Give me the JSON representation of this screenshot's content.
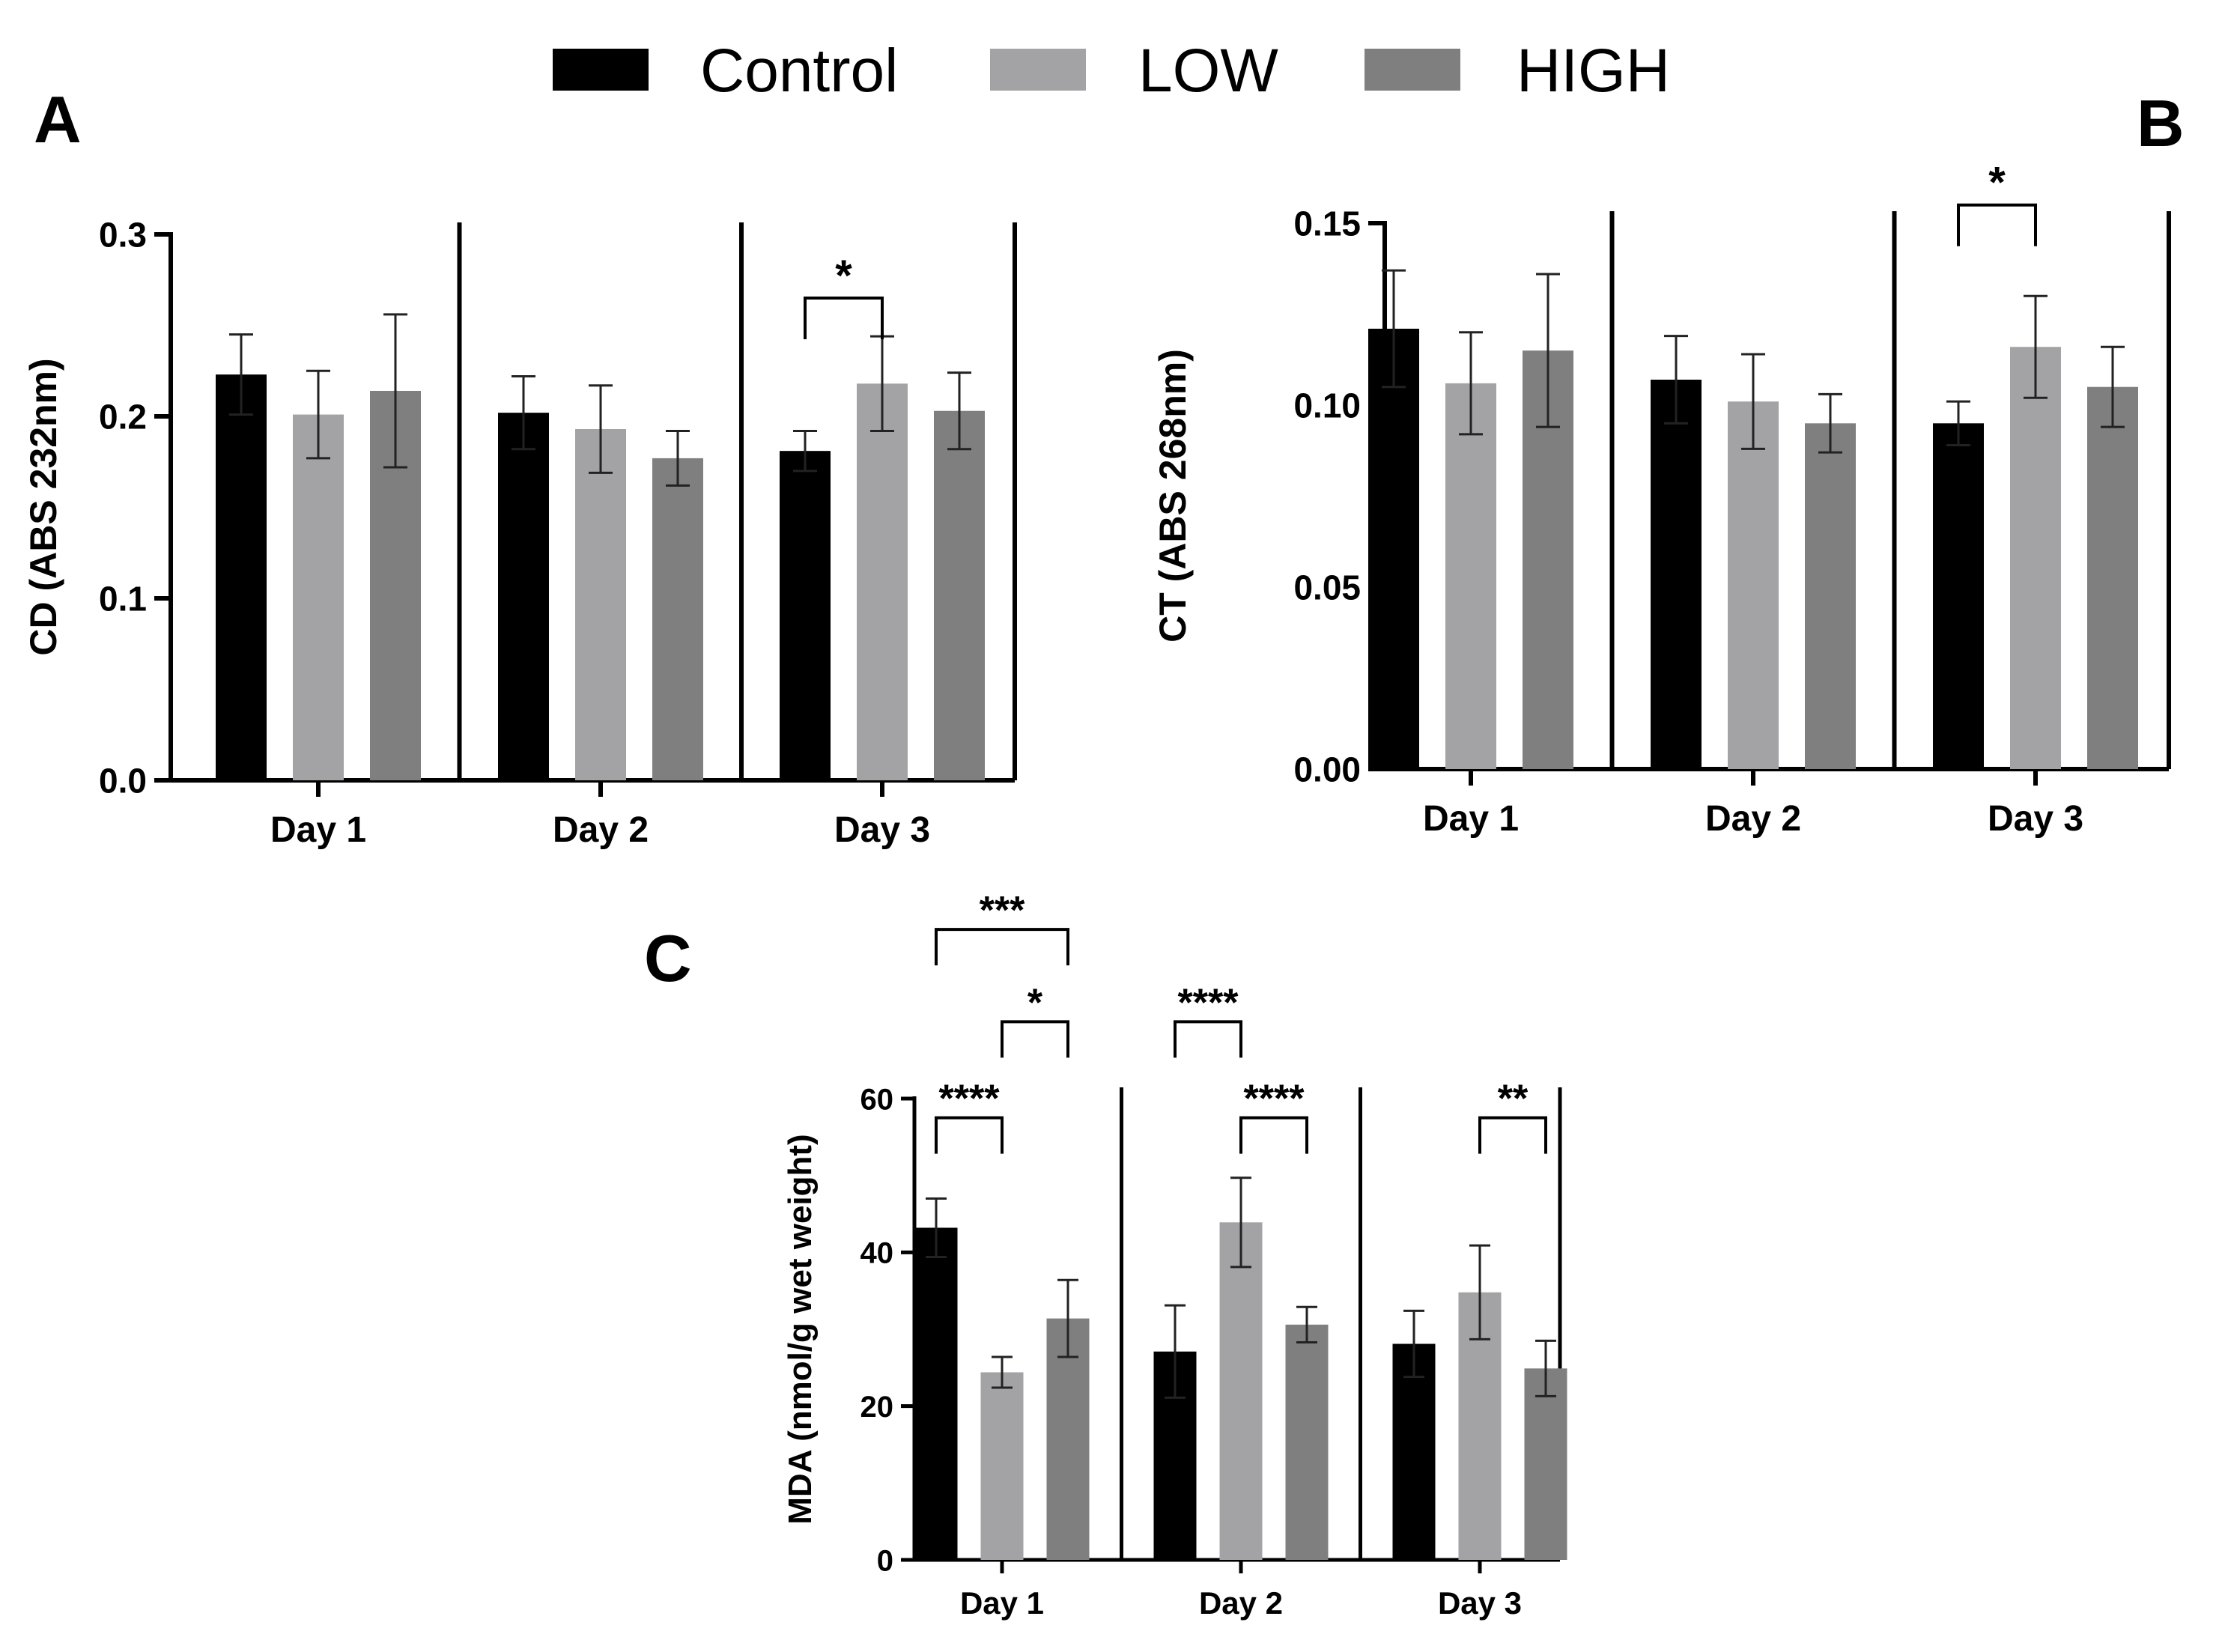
{
  "legend": [
    {
      "label": "Control",
      "color": "#000000"
    },
    {
      "label": "LOW",
      "color": "#a3a3a6"
    },
    {
      "label": "HIGH",
      "color": "#7f7f7f"
    }
  ],
  "chart_data": [
    {
      "type": "bar",
      "panel": "A",
      "title": "",
      "ylabel": "CD (ABS 232nm)",
      "xlabel": "",
      "categories": [
        "Day 1",
        "Day 2",
        "Day 3"
      ],
      "ylim": [
        0,
        0.3
      ],
      "yticks": [
        0,
        0.1,
        0.2,
        0.3
      ],
      "ytick_labels": [
        "0.0",
        "0.1",
        "0.2",
        "0.3"
      ],
      "series": [
        {
          "name": "Control",
          "values": [
            0.223,
            0.202,
            0.181
          ],
          "errors": [
            0.022,
            0.02,
            0.011
          ]
        },
        {
          "name": "LOW",
          "values": [
            0.201,
            0.193,
            0.218
          ],
          "errors": [
            0.024,
            0.024,
            0.026
          ]
        },
        {
          "name": "HIGH",
          "values": [
            0.214,
            0.177,
            0.203
          ],
          "errors": [
            0.042,
            0.015,
            0.021
          ]
        }
      ],
      "significance": [
        {
          "category": 2,
          "from": 0,
          "to": 1,
          "label": "*",
          "level": 0.265
        }
      ]
    },
    {
      "type": "bar",
      "panel": "B",
      "title": "",
      "ylabel": "CT (ABS 268nm)",
      "xlabel": "",
      "categories": [
        "Day 1",
        "Day 2",
        "Day 3"
      ],
      "ylim": [
        0,
        0.15
      ],
      "yticks": [
        0,
        0.05,
        0.1,
        0.15
      ],
      "ytick_labels": [
        "0.00",
        "0.05",
        "0.10",
        "0.15"
      ],
      "series": [
        {
          "name": "Control",
          "values": [
            0.121,
            0.107,
            0.095
          ],
          "errors": [
            0.016,
            0.012,
            0.006
          ]
        },
        {
          "name": "LOW",
          "values": [
            0.106,
            0.101,
            0.116
          ],
          "errors": [
            0.014,
            0.013,
            0.014
          ]
        },
        {
          "name": "HIGH",
          "values": [
            0.115,
            0.095,
            0.105
          ],
          "errors": [
            0.021,
            0.008,
            0.011
          ]
        }
      ],
      "significance": [
        {
          "category": 2,
          "from": 0,
          "to": 1,
          "label": "*",
          "level": 0.155
        }
      ]
    },
    {
      "type": "bar",
      "panel": "C",
      "title": "",
      "ylabel": "MDA (nmol/g wet weight)",
      "xlabel": "",
      "categories": [
        "Day 1",
        "Day 2",
        "Day 3"
      ],
      "ylim": [
        0,
        60
      ],
      "yticks": [
        0,
        20,
        40,
        60
      ],
      "ytick_labels": [
        "0",
        "20",
        "40",
        "60"
      ],
      "series": [
        {
          "name": "Control",
          "values": [
            43.2,
            27.1,
            28.1
          ],
          "errors": [
            3.8,
            6.0,
            4.3
          ]
        },
        {
          "name": "LOW",
          "values": [
            24.4,
            43.9,
            34.8
          ],
          "errors": [
            2.0,
            5.8,
            6.1
          ]
        },
        {
          "name": "HIGH",
          "values": [
            31.4,
            30.6,
            24.9
          ],
          "errors": [
            5.0,
            2.3,
            3.6
          ]
        }
      ],
      "significance": [
        {
          "category": 0,
          "from": 0,
          "to": 2,
          "label": "***",
          "level": 82
        },
        {
          "category": 0,
          "from": 1,
          "to": 2,
          "label": "*",
          "level": 70
        },
        {
          "category": 0,
          "from": 0,
          "to": 1,
          "label": "****",
          "level": 57.5
        },
        {
          "category": 1,
          "from": 0,
          "to": 1,
          "label": "****",
          "level": 70
        },
        {
          "category": 1,
          "from": 1,
          "to": 2,
          "label": "****",
          "level": 57.5
        },
        {
          "category": 2,
          "from": 1,
          "to": 2,
          "label": "**",
          "level": 57.5
        }
      ]
    }
  ]
}
